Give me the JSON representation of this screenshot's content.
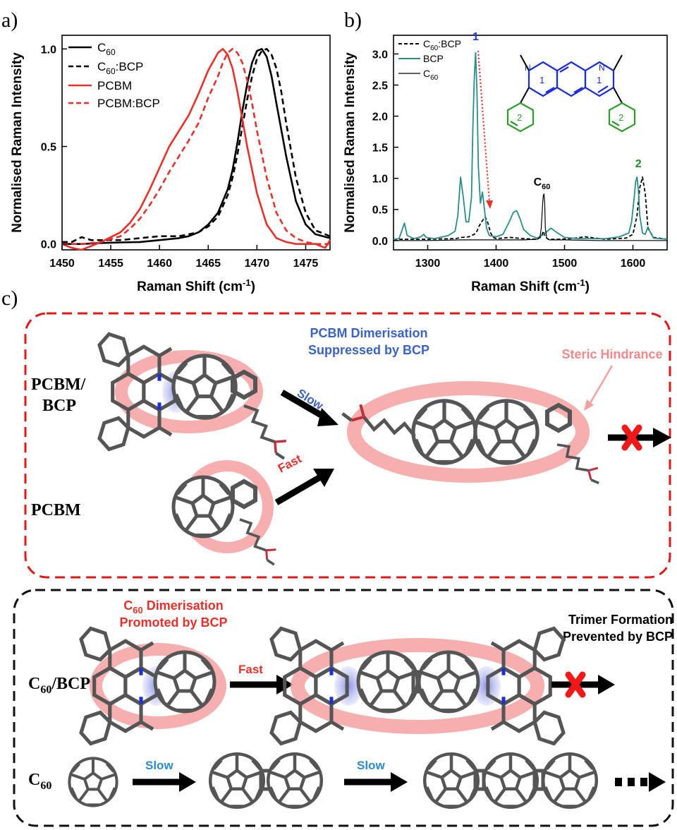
{
  "panel_labels": {
    "a": "a)",
    "b": "b)",
    "c": "c)"
  },
  "chart_data": [
    {
      "type": "line",
      "xlabel": "Raman Shift (cm",
      "xlabel_sup": "-1",
      "xlabel_tail": ")",
      "ylabel": "Normalised Raman Intensity",
      "xlim": [
        1450,
        1477.5
      ],
      "ylim": [
        -0.03,
        1.07
      ],
      "xticks": [
        1450,
        1455,
        1460,
        1465,
        1470,
        1475
      ],
      "yticks": [
        0.0,
        0.5,
        1.0
      ],
      "ytick_labels": [
        "0.0",
        "0.5",
        "1.0"
      ],
      "legend_position": "top-left",
      "series": [
        {
          "name": "C",
          "name_sub": "60",
          "color": "#000000",
          "dash": "solid",
          "x": [
            1450,
            1452,
            1454,
            1456,
            1458,
            1460,
            1462,
            1463,
            1464,
            1465,
            1466,
            1467,
            1467.5,
            1468,
            1468.5,
            1469,
            1469.5,
            1470,
            1470.5,
            1471,
            1471.5,
            1472,
            1473,
            1474,
            1475,
            1476,
            1477.5
          ],
          "y": [
            0.0,
            0.0,
            0.005,
            0.008,
            0.01,
            0.02,
            0.03,
            0.04,
            0.06,
            0.1,
            0.16,
            0.28,
            0.38,
            0.52,
            0.68,
            0.82,
            0.93,
            0.99,
            1.0,
            0.96,
            0.86,
            0.72,
            0.45,
            0.22,
            0.1,
            0.05,
            0.03
          ]
        },
        {
          "name": "C",
          "name_sub": "60",
          "name_tail": ":BCP",
          "color": "#000000",
          "dash": "dashed",
          "x": [
            1450,
            1451,
            1452,
            1453,
            1454,
            1456,
            1458,
            1460,
            1462,
            1464,
            1465,
            1466,
            1467,
            1467.5,
            1468,
            1468.5,
            1469,
            1469.5,
            1470,
            1470.5,
            1471,
            1471.5,
            1472,
            1472.5,
            1473,
            1474,
            1475,
            1476,
            1477.5
          ],
          "y": [
            0.01,
            0.01,
            0.035,
            0.02,
            0.02,
            0.02,
            0.03,
            0.04,
            0.04,
            0.06,
            0.09,
            0.14,
            0.25,
            0.34,
            0.46,
            0.6,
            0.74,
            0.86,
            0.95,
            0.99,
            1.0,
            0.97,
            0.9,
            0.78,
            0.62,
            0.34,
            0.16,
            0.07,
            0.04
          ]
        },
        {
          "name": "PCBM",
          "color": "#e8302a",
          "dash": "solid",
          "x": [
            1450,
            1451,
            1452,
            1453,
            1454,
            1456,
            1457,
            1458,
            1459,
            1460,
            1461,
            1462,
            1463,
            1464,
            1465,
            1466,
            1466.5,
            1467,
            1467.5,
            1468,
            1468.5,
            1469,
            1470,
            1471,
            1472,
            1473,
            1474,
            1475,
            1476,
            1477,
            1477.5
          ],
          "y": [
            0.0,
            -0.02,
            -0.03,
            -0.01,
            0.01,
            0.06,
            0.11,
            0.18,
            0.28,
            0.39,
            0.5,
            0.58,
            0.66,
            0.77,
            0.89,
            0.98,
            1.0,
            0.97,
            0.9,
            0.78,
            0.64,
            0.5,
            0.26,
            0.1,
            0.03,
            0.01,
            0.0,
            0.0,
            0.0,
            -0.02,
            0.02
          ]
        },
        {
          "name": "PCBM:BCP",
          "color": "#e8302a",
          "dash": "dashed",
          "x": [
            1450,
            1452,
            1454,
            1456,
            1457,
            1458,
            1459,
            1460,
            1461,
            1462,
            1463,
            1464,
            1465,
            1466,
            1466.5,
            1467,
            1467.5,
            1468,
            1468.5,
            1469,
            1469.5,
            1470,
            1471,
            1472,
            1473,
            1474,
            1475,
            1476,
            1477.5
          ],
          "y": [
            0.0,
            0.0,
            0.01,
            0.04,
            0.08,
            0.13,
            0.2,
            0.28,
            0.37,
            0.45,
            0.53,
            0.62,
            0.75,
            0.86,
            0.93,
            0.98,
            1.0,
            0.98,
            0.93,
            0.84,
            0.72,
            0.58,
            0.34,
            0.16,
            0.07,
            0.03,
            0.01,
            0.0,
            0.0
          ]
        }
      ]
    },
    {
      "type": "line",
      "xlabel": "Raman Shift (cm",
      "xlabel_sup": "-1",
      "xlabel_tail": ")",
      "ylabel": "Normalised Raman Intensity",
      "xlim": [
        1250,
        1650
      ],
      "ylim": [
        -0.15,
        3.3
      ],
      "xticks": [
        1300,
        1400,
        1500,
        1600
      ],
      "yticks": [
        0.0,
        0.5,
        1.0,
        1.5,
        2.0,
        2.5,
        3.0
      ],
      "ytick_labels": [
        "0.0",
        "0.5",
        "1.0",
        "1.5",
        "2.0",
        "2.5",
        "3.0"
      ],
      "legend_position": "top-left",
      "series": [
        {
          "name": "C",
          "name_sub": "60",
          "name_tail": ":BCP",
          "color": "#000000",
          "dash": "dashed",
          "x": [
            1250,
            1300,
            1340,
            1350,
            1360,
            1368,
            1372,
            1376,
            1380,
            1384,
            1388,
            1392,
            1396,
            1400,
            1420,
            1440,
            1460,
            1466,
            1469,
            1472,
            1476,
            1490,
            1510,
            1530,
            1560,
            1590,
            1600,
            1606,
            1610,
            1614,
            1618,
            1622,
            1630,
            1650
          ],
          "y": [
            0.02,
            0.02,
            0.03,
            0.05,
            0.06,
            0.1,
            0.15,
            0.25,
            0.32,
            0.38,
            0.28,
            0.12,
            0.05,
            0.03,
            0.05,
            0.03,
            0.02,
            0.06,
            0.15,
            0.06,
            0.02,
            0.02,
            0.03,
            0.06,
            0.02,
            0.04,
            0.1,
            0.4,
            0.85,
            1.02,
            0.75,
            0.2,
            0.05,
            0.02
          ]
        },
        {
          "name": "BCP",
          "color": "#2a8d8b",
          "dash": "solid",
          "x": [
            1250,
            1258,
            1262,
            1266,
            1270,
            1280,
            1290,
            1294,
            1298,
            1310,
            1330,
            1340,
            1344,
            1348,
            1352,
            1356,
            1360,
            1364,
            1366,
            1368,
            1370,
            1372,
            1374,
            1377,
            1380,
            1383,
            1386,
            1390,
            1400,
            1410,
            1420,
            1425,
            1430,
            1435,
            1440,
            1450,
            1460,
            1470,
            1480,
            1490,
            1500,
            1520,
            1540,
            1560,
            1580,
            1594,
            1598,
            1602,
            1604,
            1606,
            1608,
            1610,
            1614,
            1618,
            1622,
            1626,
            1630,
            1650
          ],
          "y": [
            0.02,
            0.03,
            0.15,
            0.28,
            0.08,
            0.03,
            0.06,
            0.1,
            0.05,
            0.03,
            0.08,
            0.15,
            0.4,
            1.02,
            0.7,
            0.3,
            0.3,
            0.7,
            1.8,
            2.6,
            3.02,
            2.4,
            1.2,
            0.6,
            0.78,
            0.5,
            0.2,
            0.08,
            0.06,
            0.1,
            0.32,
            0.45,
            0.48,
            0.35,
            0.18,
            0.08,
            0.04,
            0.1,
            0.2,
            0.12,
            0.05,
            0.03,
            0.03,
            0.03,
            0.06,
            0.12,
            0.3,
            0.7,
            0.95,
            1.02,
            0.8,
            0.4,
            0.12,
            0.1,
            0.22,
            0.12,
            0.04,
            0.02
          ]
        },
        {
          "name": "C",
          "name_sub": "60",
          "color": "#000000",
          "dash": "solid",
          "thin": true,
          "x": [
            1250,
            1300,
            1350,
            1400,
            1440,
            1460,
            1464,
            1466,
            1468,
            1469,
            1470,
            1471,
            1472,
            1474,
            1478,
            1500,
            1550,
            1600,
            1650
          ],
          "y": [
            0.0,
            0.0,
            0.01,
            0.01,
            0.01,
            0.02,
            0.05,
            0.2,
            0.6,
            0.72,
            0.75,
            0.6,
            0.2,
            0.04,
            0.01,
            0.01,
            0.0,
            0.0,
            0.0
          ]
        }
      ],
      "annotations": [
        {
          "text": "1",
          "x": 1370,
          "y": 3.22,
          "color": "#1a3cd8"
        },
        {
          "text": "C",
          "sub": "60",
          "x": 1467,
          "y": 0.88,
          "color": "#000000"
        },
        {
          "text": "2",
          "x": 1608,
          "y": 1.18,
          "color": "#238c23"
        }
      ],
      "inset": {
        "ring_labels": [
          "1",
          "1",
          "2",
          "2"
        ]
      }
    }
  ],
  "scheme": {
    "top_box": {
      "row1_label_line1": "PCBM/",
      "row1_label_line2": "BCP",
      "row2_label": "PCBM",
      "title_line1": "PCBM Dimerisation",
      "title_line2": "Suppressed by BCP",
      "slow": "Slow",
      "fast": "Fast",
      "steric": "Steric Hindrance"
    },
    "bottom_box": {
      "title_line1": "C",
      "title_sub": "60",
      "title_line1_tail": " Dimerisation",
      "title_line2": "Promoted by BCP",
      "trimer_line1": "Trimer Formation",
      "trimer_line2": "Prevented by BCP",
      "row1_label": "C",
      "row1_sub": "60",
      "row1_tail": "/BCP",
      "row2_label": "C",
      "row2_sub": "60",
      "fast": "Fast",
      "slow1": "Slow",
      "slow2": "Slow"
    }
  },
  "colors": {
    "black": "#000000",
    "red": "#e8302a",
    "teal": "#2a8d8b",
    "blue_text": "#3a63c4",
    "red_text": "#e8302a",
    "pink_text": "#f08a8a",
    "struct_blue": "#1a2cd8",
    "struct_green": "#2a9d2a",
    "molecule_grey": "#5a5a5a",
    "halo": "#f4a0a0",
    "blue_overlap": "#8a90e0"
  }
}
